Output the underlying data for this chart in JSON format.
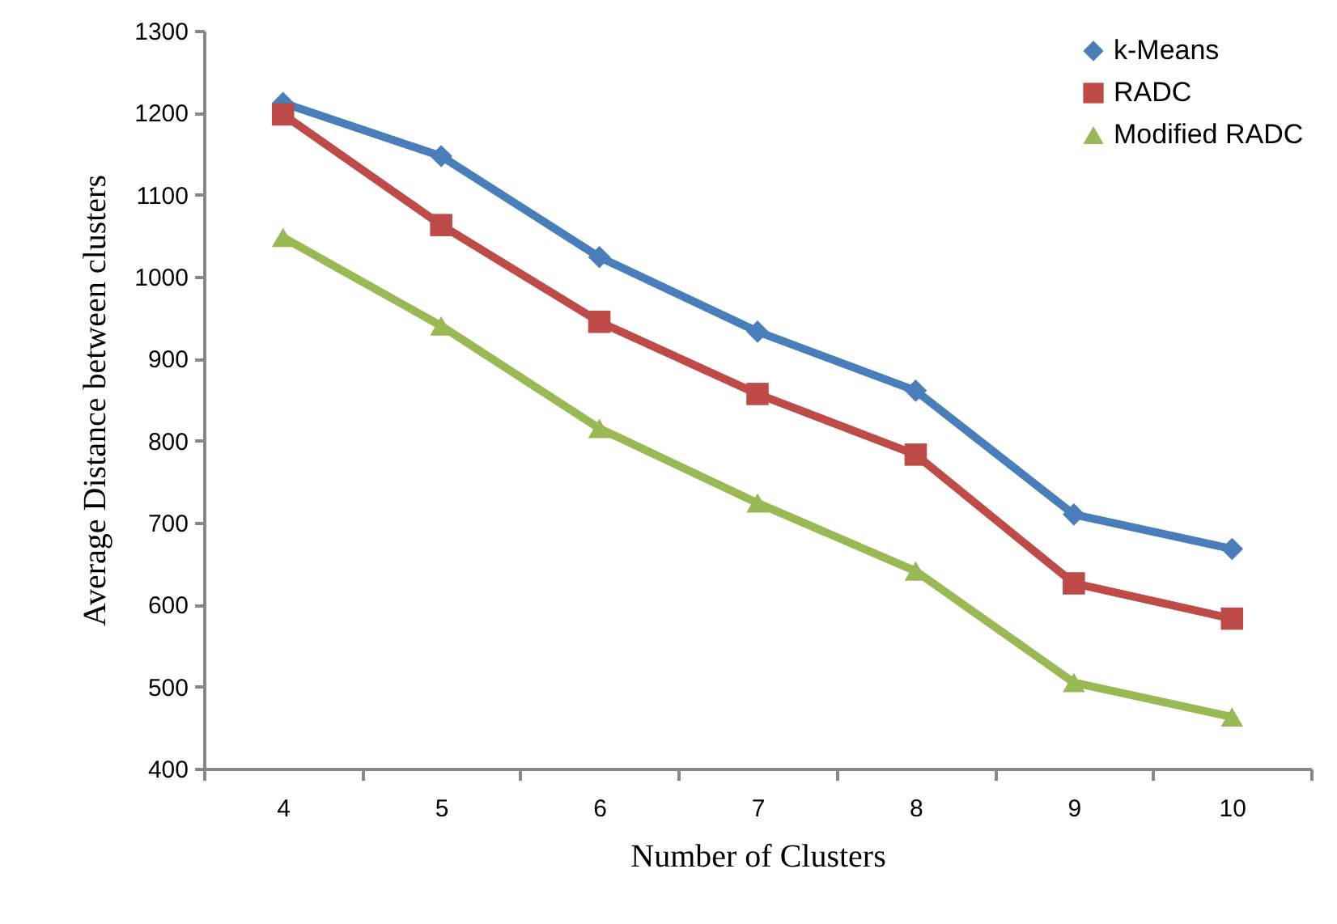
{
  "chart_data": {
    "type": "line",
    "xlabel": "Number of Clusters",
    "ylabel": "Average Distance between clusters",
    "categories": [
      "4",
      "5",
      "6",
      "7",
      "8",
      "9",
      "10"
    ],
    "series": [
      {
        "name": "k-Means",
        "color": "#4a7ebb",
        "marker": "diamond",
        "values": [
          1212,
          1147,
          1024,
          933,
          861,
          710,
          668
        ]
      },
      {
        "name": "RADC",
        "color": "#be4b48",
        "marker": "square",
        "values": [
          1198,
          1063,
          945,
          857,
          783,
          626,
          583
        ]
      },
      {
        "name": "Modified RADC",
        "color": "#98b954",
        "marker": "triangle",
        "values": [
          1048,
          940,
          815,
          724,
          641,
          505,
          463
        ]
      }
    ],
    "ylim": [
      400,
      1300
    ],
    "yticks": [
      400,
      500,
      600,
      700,
      800,
      900,
      1000,
      1100,
      1200,
      1300
    ],
    "grid": false,
    "legend": "top right",
    "line_style": "solid"
  }
}
